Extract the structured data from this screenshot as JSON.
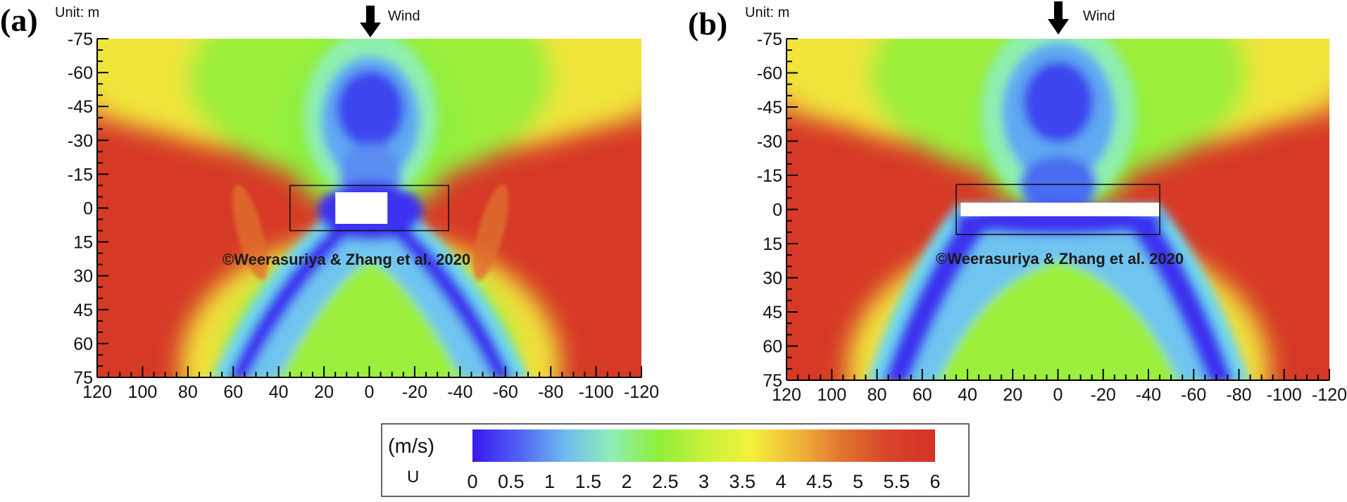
{
  "chart_data": [
    {
      "type": "heatmap",
      "panel_label": "(a)",
      "unit_text": "Unit: m",
      "wind_label": "Wind",
      "x_ticks": [
        120,
        100,
        80,
        60,
        40,
        20,
        0,
        -20,
        -40,
        -60,
        -80,
        -100,
        -120
      ],
      "y_ticks": [
        -75,
        -60,
        -45,
        -30,
        -15,
        0,
        15,
        30,
        45,
        60,
        75
      ],
      "xlim": [
        120,
        -120
      ],
      "ylim": [
        -75,
        75
      ],
      "building": {
        "x": [
          -8,
          15
        ],
        "y": [
          -7,
          7
        ]
      },
      "box": {
        "x": [
          -35,
          35
        ],
        "y": [
          -10,
          10
        ]
      },
      "annotation": "©Weerasuriya & Zhang et al. 2020"
    },
    {
      "type": "heatmap",
      "panel_label": "(b)",
      "unit_text": "Unit: m",
      "wind_label": "Wind",
      "x_ticks": [
        120,
        100,
        80,
        60,
        40,
        20,
        0,
        -20,
        -40,
        -60,
        -80,
        -100,
        -120
      ],
      "y_ticks": [
        -75,
        -60,
        -45,
        -30,
        -15,
        0,
        15,
        30,
        45,
        60,
        75
      ],
      "xlim": [
        120,
        -120
      ],
      "ylim": [
        -75,
        75
      ],
      "building": {
        "x": [
          -45,
          43
        ],
        "y": [
          -3,
          3
        ]
      },
      "box": {
        "x": [
          -45,
          45
        ],
        "y": [
          -11,
          11
        ]
      },
      "annotation": "©Weerasuriya & Zhang et al. 2020"
    }
  ],
  "colorbar": {
    "unit": "(m/s)",
    "variable": "U",
    "ticks": [
      "0",
      "0.5",
      "1",
      "1.5",
      "2",
      "2.5",
      "3",
      "3.5",
      "4",
      "4.5",
      "5",
      "5.5",
      "6"
    ],
    "range": [
      0,
      6
    ],
    "colors": [
      "#3a18f2",
      "#5060f2",
      "#6fbaf0",
      "#8fefb6",
      "#8fef3a",
      "#c6f23a",
      "#f2f23a",
      "#f0b73a",
      "#e0742e",
      "#d8432a",
      "#d43226"
    ]
  }
}
